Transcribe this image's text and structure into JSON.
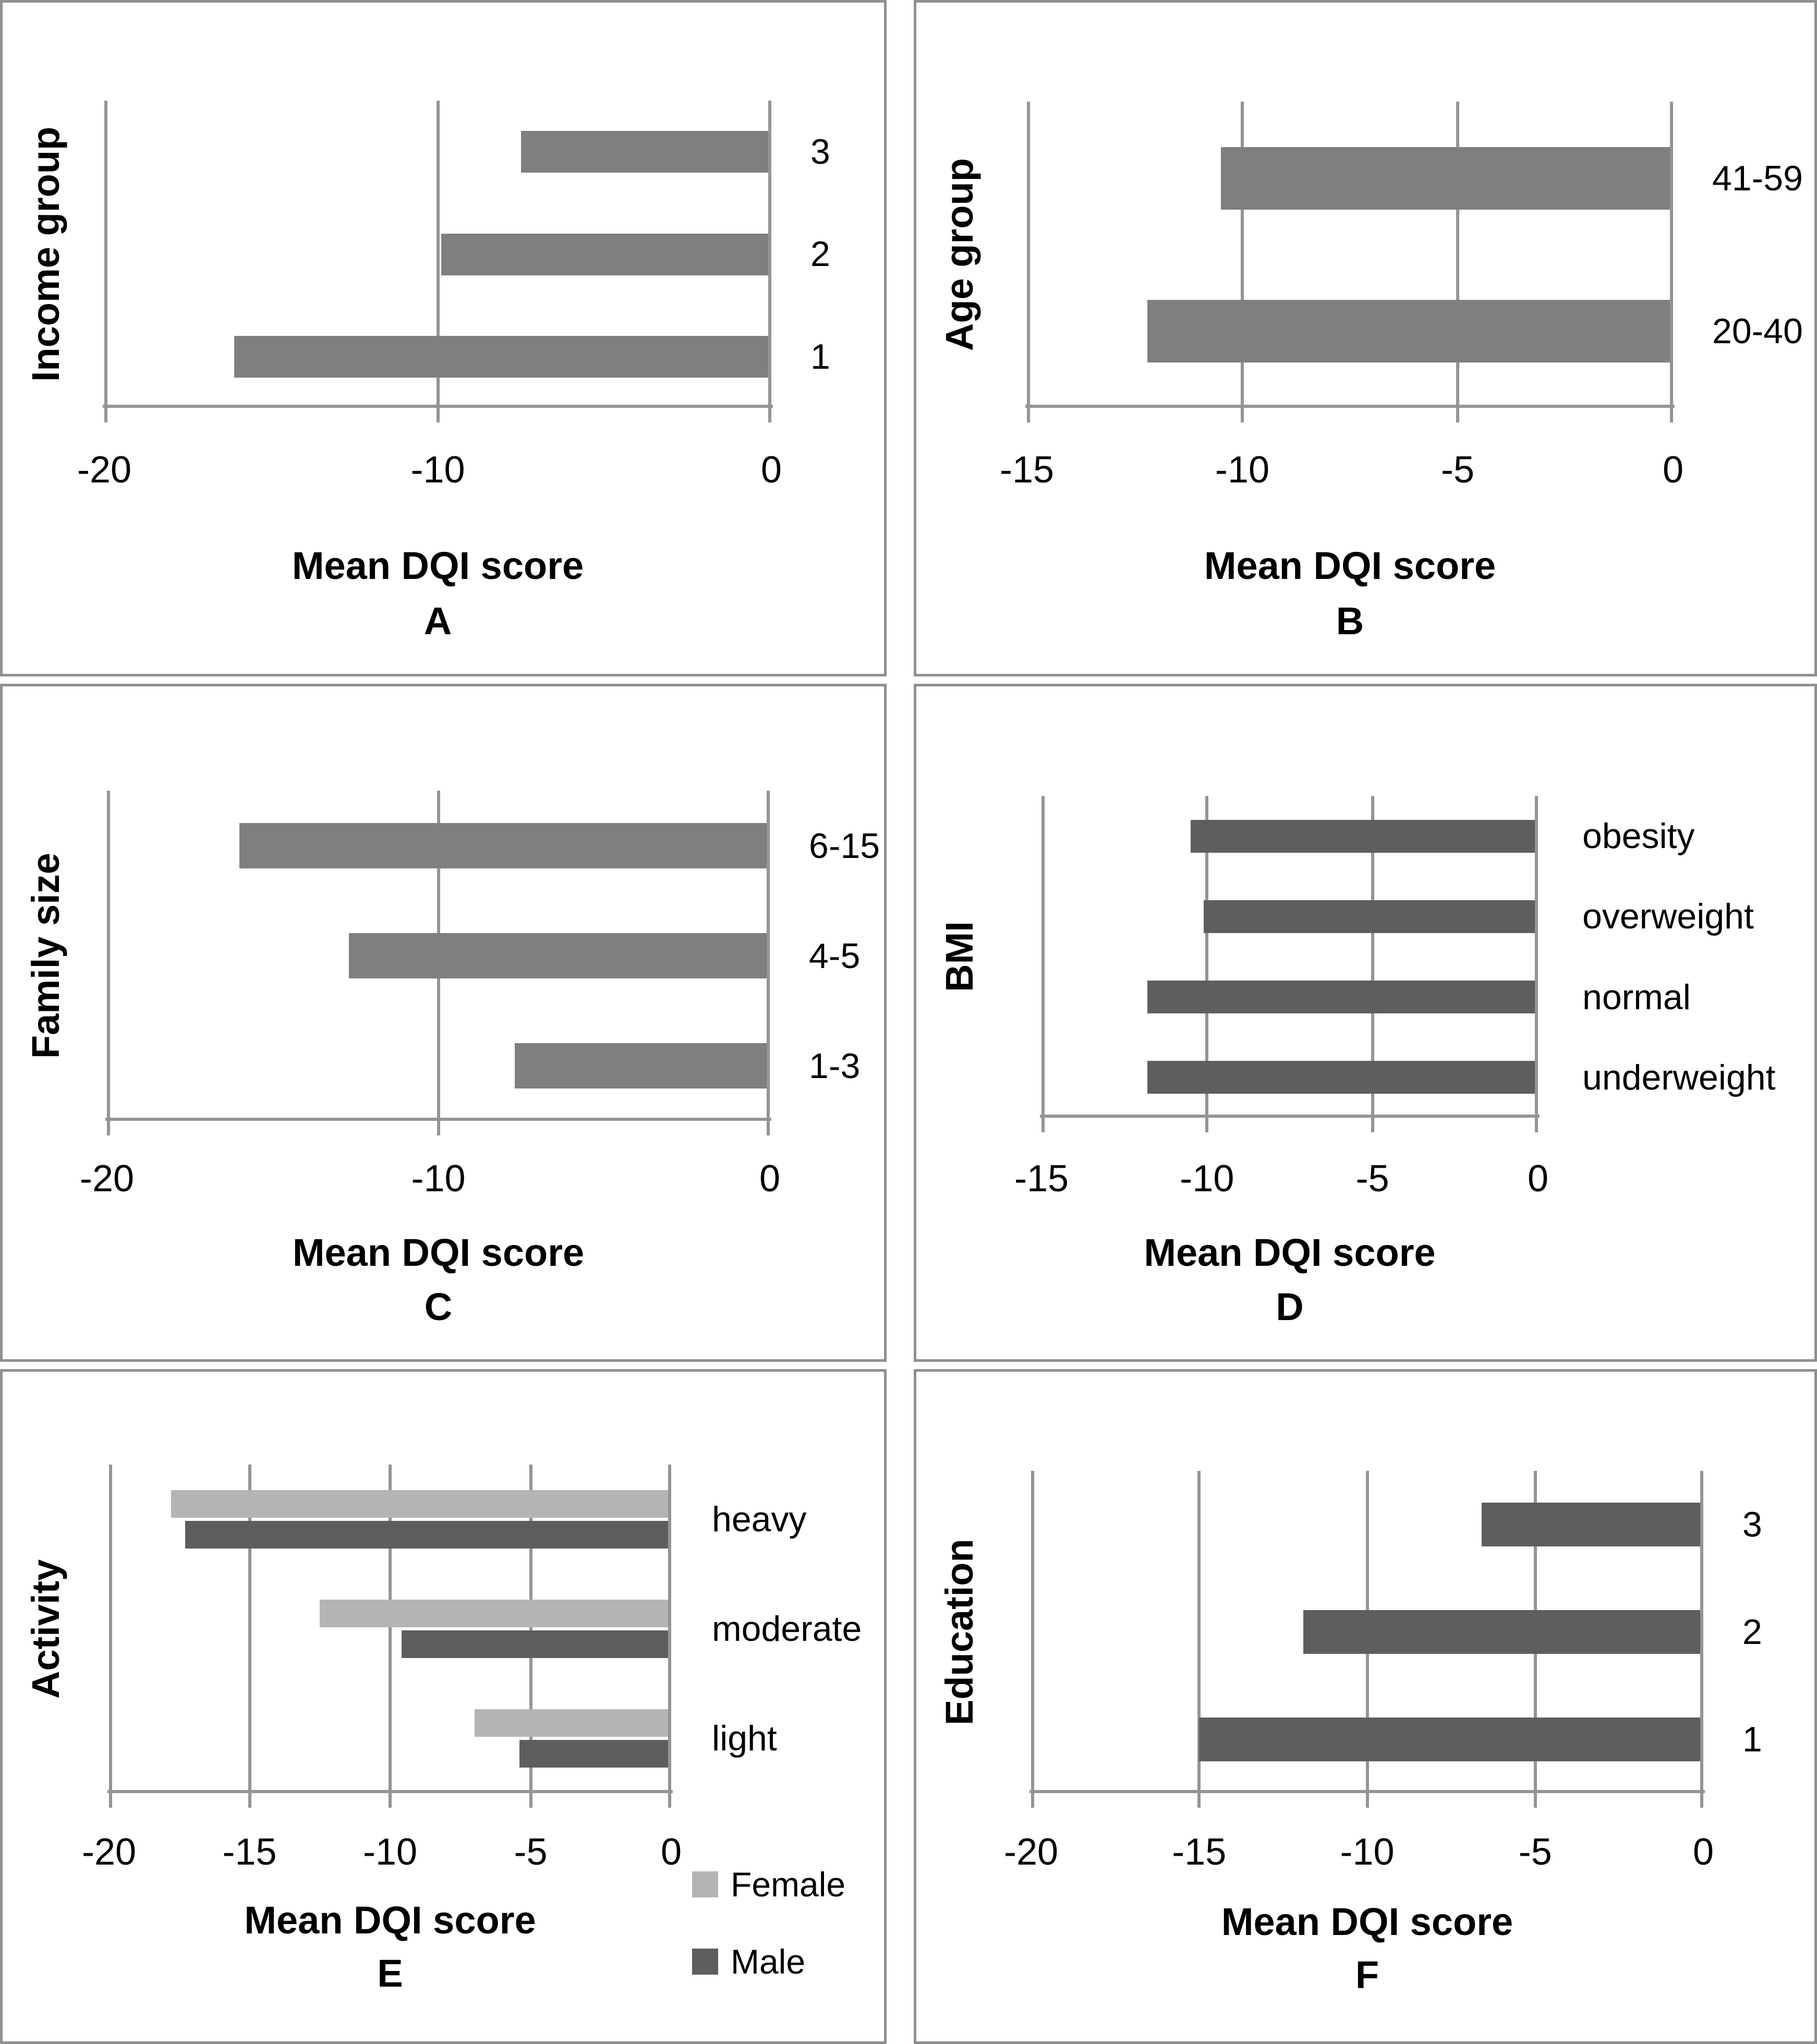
{
  "figure": {
    "x_axis_title_shared": "Mean DQI score",
    "colors": {
      "bar_medium_gray": "#7f7f7f",
      "bar_dark_gray": "#5e5e5e",
      "bar_light_gray": "#b4b4b4",
      "axis_gray": "#949494",
      "panel_border_gray": "#8f8f8f",
      "text_black": "#000000"
    }
  },
  "chart_data": [
    {
      "type": "bar",
      "panel_label": "A",
      "y_axis_title": "Income group",
      "x_axis_title": "Mean DQI score",
      "x_min": -20,
      "x_max": 0,
      "x_ticks": [
        -20,
        -10,
        0
      ],
      "categories": [
        "3",
        "2",
        "1"
      ],
      "values": [
        -7.5,
        -9.9,
        -16.1
      ],
      "bar_color": "#7f7f7f",
      "grid": true,
      "legend_position": "none"
    },
    {
      "type": "bar",
      "panel_label": "B",
      "y_axis_title": "Age group",
      "x_axis_title": "Mean DQI score",
      "x_min": -15,
      "x_max": 0,
      "x_ticks": [
        -15,
        -10,
        -5,
        0
      ],
      "categories": [
        "41-59",
        "20-40"
      ],
      "values": [
        -10.5,
        -12.2
      ],
      "bar_color": "#7f7f7f",
      "grid": true,
      "legend_position": "none"
    },
    {
      "type": "bar",
      "panel_label": "C",
      "y_axis_title": "Family size",
      "x_axis_title": "Mean DQI score",
      "x_min": -20,
      "x_max": 0,
      "x_ticks": [
        -20,
        -10,
        0
      ],
      "categories": [
        "6-15",
        "4-5",
        "1-3"
      ],
      "values": [
        -16.0,
        -12.7,
        -7.7
      ],
      "bar_color": "#7f7f7f",
      "grid": true,
      "legend_position": "none"
    },
    {
      "type": "bar",
      "panel_label": "D",
      "y_axis_title": "BMI",
      "x_axis_title": "Mean DQI score",
      "x_min": -15,
      "x_max": 0,
      "x_ticks": [
        -15,
        -10,
        -5,
        0
      ],
      "categories": [
        "obesity",
        "overweight",
        "normal",
        "underweight"
      ],
      "values": [
        -10.5,
        -10.1,
        -11.8,
        -11.8
      ],
      "bar_color": "#5e5e5e",
      "grid": true,
      "legend_position": "none"
    },
    {
      "type": "bar",
      "panel_label": "E",
      "y_axis_title": "Activity",
      "x_axis_title": "Mean DQI score",
      "x_min": -20,
      "x_max": 0,
      "x_ticks": [
        -20,
        -15,
        -10,
        -5,
        0
      ],
      "categories": [
        "heavy",
        "moderate",
        "light"
      ],
      "series": [
        {
          "name": "Female",
          "color": "#b4b4b4",
          "values": [
            -17.8,
            -12.5,
            -7.0
          ]
        },
        {
          "name": "Male",
          "color": "#5e5e5e",
          "values": [
            -17.3,
            -9.6,
            -5.4
          ]
        }
      ],
      "legend": [
        {
          "label": "Female",
          "color": "#b4b4b4"
        },
        {
          "label": "Male",
          "color": "#5e5e5e"
        }
      ],
      "grid": true,
      "legend_position": "bottom-right"
    },
    {
      "type": "bar",
      "panel_label": "F",
      "y_axis_title": "Education",
      "x_axis_title": "Mean DQI score",
      "x_min": -20,
      "x_max": 0,
      "x_ticks": [
        -20,
        -15,
        -10,
        -5,
        0
      ],
      "categories": [
        "3",
        "2",
        "1"
      ],
      "values": [
        -6.6,
        -11.9,
        -15.0
      ],
      "bar_color": "#5e5e5e",
      "grid": true,
      "legend_position": "none"
    }
  ]
}
